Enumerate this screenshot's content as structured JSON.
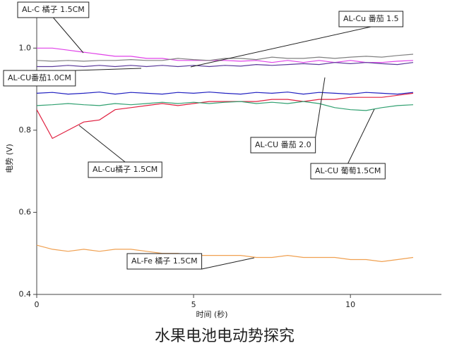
{
  "chart_data": {
    "type": "line",
    "caption": "水果电池电动势探究",
    "xlabel": "时间 (秒)",
    "ylabel": "电势 (V)",
    "x": [
      0,
      0.5,
      1,
      1.5,
      2,
      2.5,
      3,
      3.5,
      4,
      4.5,
      5,
      5.5,
      6,
      6.5,
      7,
      7.5,
      8,
      8.5,
      9,
      9.5,
      10,
      10.5,
      11,
      11.5,
      12
    ],
    "xlim": [
      0,
      12.9
    ],
    "xticks": [
      0,
      5,
      10
    ],
    "ylim": [
      0.4,
      1.1
    ],
    "yticks": [
      0.4,
      0.6,
      0.8,
      {
        "value": 1,
        "label": "1.0"
      }
    ],
    "series": [
      {
        "name": "AL-C 橘子 1.5CM",
        "color": "#e040e8",
        "values": [
          1.0,
          1.0,
          0.995,
          0.99,
          0.985,
          0.98,
          0.98,
          0.975,
          0.975,
          0.97,
          0.97,
          0.97,
          0.97,
          0.968,
          0.97,
          0.965,
          0.97,
          0.965,
          0.97,
          0.965,
          0.97,
          0.965,
          0.965,
          0.968,
          0.97
        ]
      },
      {
        "name": "AL-Cu 番茄 1.5",
        "color": "#808080",
        "values": [
          0.97,
          0.968,
          0.97,
          0.968,
          0.97,
          0.97,
          0.972,
          0.97,
          0.97,
          0.975,
          0.972,
          0.97,
          0.975,
          0.975,
          0.972,
          0.978,
          0.975,
          0.975,
          0.978,
          0.975,
          0.978,
          0.98,
          0.978,
          0.982,
          0.985
        ]
      },
      {
        "name": "AL-CU番茄1.0CM",
        "color": "#5a3a9a",
        "values": [
          0.955,
          0.955,
          0.958,
          0.955,
          0.958,
          0.955,
          0.958,
          0.955,
          0.958,
          0.955,
          0.958,
          0.955,
          0.958,
          0.956,
          0.96,
          0.958,
          0.96,
          0.962,
          0.96,
          0.965,
          0.962,
          0.965,
          0.962,
          0.96,
          0.965
        ]
      },
      {
        "name": "AL-CU 番茄 2.0",
        "color": "#2020c0",
        "values": [
          0.89,
          0.892,
          0.888,
          0.89,
          0.893,
          0.888,
          0.892,
          0.89,
          0.888,
          0.892,
          0.89,
          0.893,
          0.89,
          0.888,
          0.892,
          0.89,
          0.893,
          0.888,
          0.892,
          0.89,
          0.888,
          0.892,
          0.89,
          0.888,
          0.892
        ]
      },
      {
        "name": "AL-Cu橘子 1.5CM",
        "color": "#e02040",
        "values": [
          0.85,
          0.78,
          0.8,
          0.82,
          0.825,
          0.85,
          0.855,
          0.86,
          0.865,
          0.86,
          0.865,
          0.87,
          0.87,
          0.87,
          0.87,
          0.875,
          0.875,
          0.87,
          0.875,
          0.875,
          0.88,
          0.88,
          0.88,
          0.885,
          0.89
        ]
      },
      {
        "name": "AL-CU 葡萄1.5CM",
        "color": "#30a070",
        "values": [
          0.86,
          0.862,
          0.865,
          0.862,
          0.86,
          0.865,
          0.862,
          0.865,
          0.868,
          0.865,
          0.868,
          0.865,
          0.868,
          0.87,
          0.865,
          0.868,
          0.865,
          0.87,
          0.865,
          0.855,
          0.85,
          0.848,
          0.855,
          0.86,
          0.862
        ]
      },
      {
        "name": "AL-Fe 橘子 1.5CM",
        "color": "#f0a050",
        "values": [
          0.52,
          0.51,
          0.505,
          0.51,
          0.505,
          0.51,
          0.51,
          0.505,
          0.5,
          0.5,
          0.495,
          0.495,
          0.495,
          0.495,
          0.49,
          0.49,
          0.495,
          0.49,
          0.49,
          0.49,
          0.485,
          0.485,
          0.48,
          0.485,
          0.49
        ]
      }
    ]
  }
}
